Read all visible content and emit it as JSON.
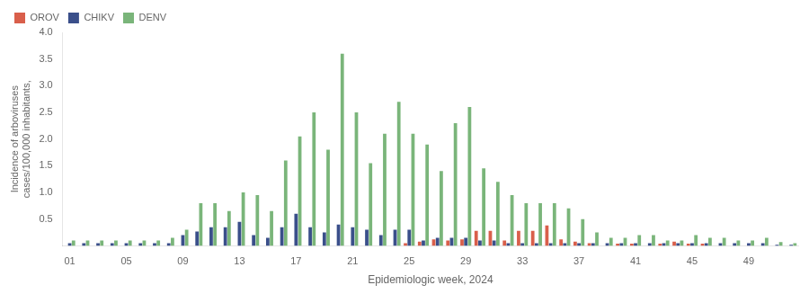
{
  "chart_data": {
    "type": "bar",
    "xlabel": "Epidemiologic week, 2024",
    "ylabel": "Incidence of arboviruses\ncases/100,000 inhabitants,",
    "categories": [
      "01",
      null,
      null,
      null,
      "05",
      null,
      null,
      null,
      "09",
      null,
      null,
      null,
      "13",
      null,
      null,
      null,
      "17",
      null,
      null,
      null,
      "21",
      null,
      null,
      null,
      "25",
      null,
      null,
      null,
      "29",
      null,
      null,
      null,
      "33",
      null,
      null,
      null,
      "37",
      null,
      null,
      null,
      "41",
      null,
      null,
      null,
      "45",
      null,
      null,
      null,
      "49",
      null,
      null,
      null
    ],
    "series": [
      {
        "name": "OROV",
        "color": "#d95f4b",
        "values": [
          0.0,
          0.0,
          0.0,
          0.0,
          0.0,
          0.0,
          0.0,
          0.0,
          0.0,
          0.0,
          0.0,
          0.0,
          0.0,
          0.0,
          0.0,
          0.0,
          0.0,
          0.0,
          0.0,
          0.0,
          0.0,
          0.0,
          0.0,
          0.0,
          0.05,
          0.08,
          0.12,
          0.1,
          0.12,
          0.28,
          0.28,
          0.1,
          0.28,
          0.28,
          0.38,
          0.12,
          0.08,
          0.05,
          0.0,
          0.04,
          0.04,
          0.0,
          0.04,
          0.08,
          0.04,
          0.04,
          0.0,
          0.0,
          0.0,
          0.0,
          0.0,
          0.0
        ]
      },
      {
        "name": "CHIKV",
        "color": "#3a4f8a",
        "values": [
          0.05,
          0.05,
          0.05,
          0.05,
          0.05,
          0.05,
          0.05,
          0.05,
          0.2,
          0.27,
          0.35,
          0.35,
          0.45,
          0.2,
          0.15,
          0.35,
          0.6,
          0.35,
          0.25,
          0.4,
          0.35,
          0.3,
          0.2,
          0.3,
          0.3,
          0.1,
          0.15,
          0.15,
          0.15,
          0.1,
          0.1,
          0.05,
          0.05,
          0.05,
          0.05,
          0.05,
          0.05,
          0.05,
          0.05,
          0.05,
          0.05,
          0.05,
          0.05,
          0.05,
          0.05,
          0.05,
          0.05,
          0.05,
          0.05,
          0.05,
          0.02,
          0.02
        ]
      },
      {
        "name": "DENV",
        "color": "#7ab57a",
        "values": [
          0.1,
          0.1,
          0.1,
          0.1,
          0.1,
          0.1,
          0.1,
          0.15,
          0.3,
          0.8,
          0.8,
          0.65,
          1.0,
          0.95,
          0.65,
          1.6,
          2.05,
          2.5,
          1.8,
          3.6,
          2.5,
          1.55,
          2.1,
          2.7,
          2.1,
          1.9,
          1.4,
          2.3,
          2.6,
          1.45,
          1.2,
          0.95,
          0.8,
          0.8,
          0.8,
          0.7,
          0.5,
          0.25,
          0.15,
          0.15,
          0.2,
          0.2,
          0.1,
          0.1,
          0.2,
          0.15,
          0.15,
          0.1,
          0.1,
          0.15,
          0.07,
          0.05
        ]
      }
    ],
    "ylim": [
      0,
      4.0
    ],
    "yticks": [
      0.5,
      {
        "value": 1.0,
        "label": "1.0"
      },
      1.5,
      {
        "value": 2.0,
        "label": "2.0"
      },
      2.5,
      {
        "value": 3.0,
        "label": "3.0"
      },
      3.5,
      {
        "value": 4.0,
        "label": "4.0"
      }
    ],
    "grid": false,
    "legend": "upper left"
  }
}
